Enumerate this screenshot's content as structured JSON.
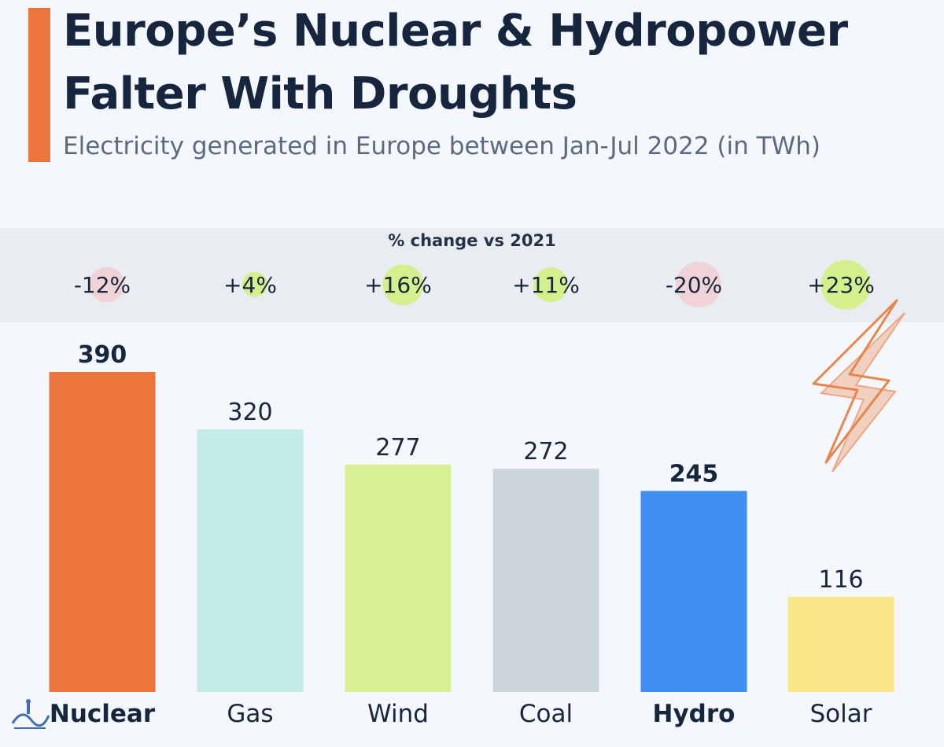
{
  "title": "Europe’s Nuclear & Hydropower Falter With Droughts",
  "subtitle": "Electricity generated in Europe between Jan-Jul 2022 (in TWh)",
  "change_heading": "% change vs 2021",
  "colors": {
    "accent": "#ec753c",
    "title": "#17263f",
    "subtitle": "#5b6a82",
    "negative_dot": "#f0d3d6",
    "positive_dot": "#d4f08d"
  },
  "chart_data": {
    "type": "bar",
    "title": "Europe’s Nuclear & Hydropower Falter With Droughts",
    "subtitle": "Electricity generated in Europe between Jan-Jul 2022 (in TWh)",
    "categories": [
      "Nuclear",
      "Gas",
      "Wind",
      "Coal",
      "Hydro",
      "Solar"
    ],
    "values": [
      390,
      320,
      277,
      272,
      245,
      116
    ],
    "value_labels": [
      "390",
      "320",
      "277",
      "272",
      "245",
      "116"
    ],
    "changes": [
      "-12%",
      "+4%",
      "+16%",
      "+11%",
      "-20%",
      "+23%"
    ],
    "change_values": [
      -12,
      4,
      16,
      11,
      -20,
      23
    ],
    "highlighted": [
      true,
      false,
      false,
      false,
      true,
      false
    ],
    "bar_colors": [
      "#ec753c",
      "#c5ebe6",
      "#d6f092",
      "#ccd6dd",
      "#3f8ef2",
      "#fae788"
    ],
    "ylim": [
      0,
      390
    ],
    "grid": false,
    "legend": "none"
  },
  "decoration": {
    "icon": "lightning-bolt-icon",
    "logo": "publisher-logo"
  }
}
